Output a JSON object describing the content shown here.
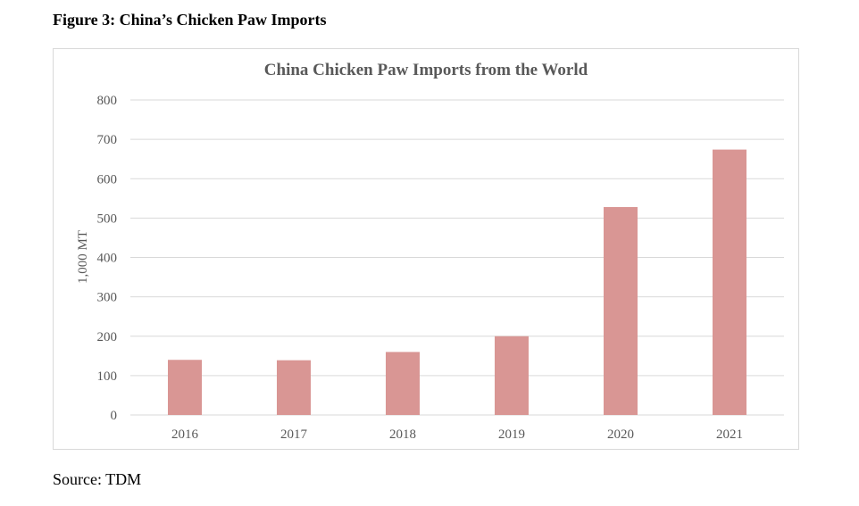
{
  "figure": {
    "title": "Figure 3: China’s Chicken Paw Imports",
    "source": "Source: TDM"
  },
  "chart_data": {
    "type": "bar",
    "title": "China Chicken Paw Imports from the World",
    "xlabel": "",
    "ylabel": "1,000 MT",
    "categories": [
      "2016",
      "2017",
      "2018",
      "2019",
      "2020",
      "2021"
    ],
    "values": [
      140,
      139,
      160,
      200,
      528,
      674
    ],
    "ylim": [
      0,
      800
    ],
    "yticks": [
      0,
      100,
      200,
      300,
      400,
      500,
      600,
      700,
      800
    ],
    "grid": true,
    "legend": "none",
    "bar_color": "#d99694",
    "grid_color": "#d9d9d9"
  }
}
